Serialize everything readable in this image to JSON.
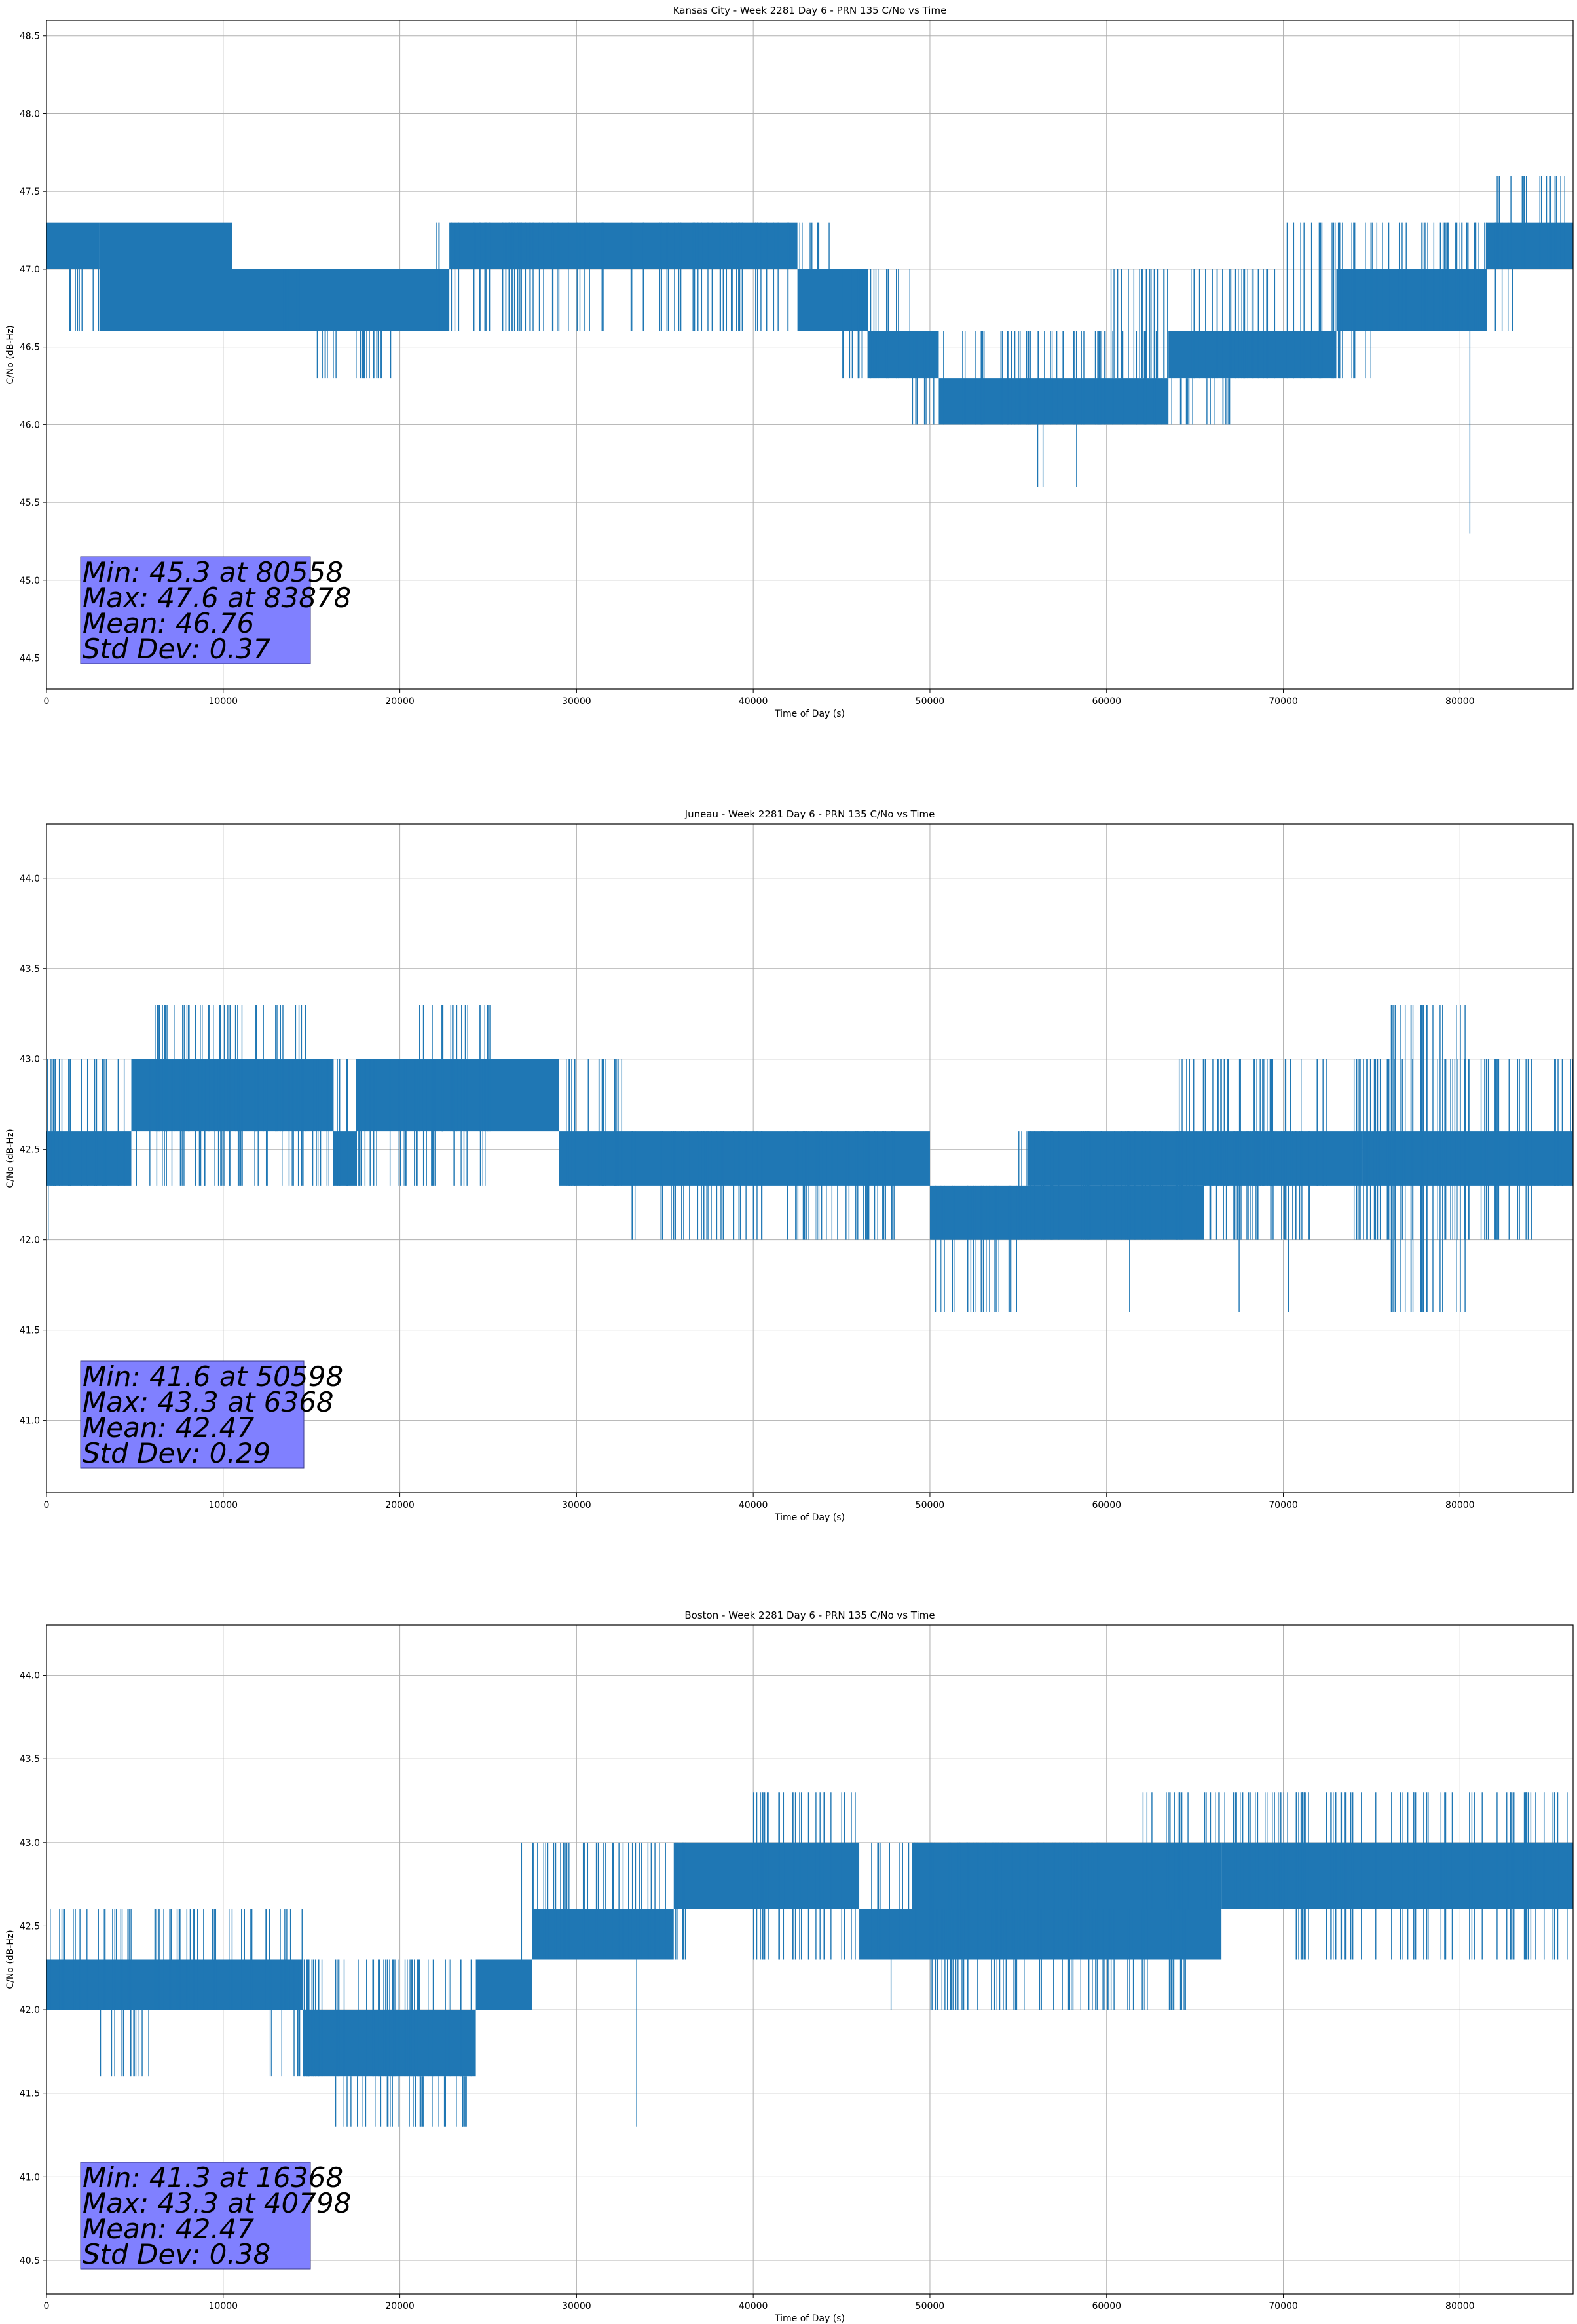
{
  "colors": {
    "line": "#1f77b4",
    "grid": "#b0b0b0",
    "stats_box_fill": "#8080ff",
    "stats_box_edge": "#3a3a8a"
  },
  "chart_data": [
    {
      "type": "line",
      "title": "Kansas City - Week 2281 Day 6 - PRN 135 C/No vs Time",
      "xlabel": "Time of Day (s)",
      "ylabel": "C/No (dB-Hz)",
      "xlim": [
        0,
        86400
      ],
      "ylim": [
        44.3,
        48.6
      ],
      "xticks": [
        0,
        10000,
        20000,
        30000,
        40000,
        50000,
        60000,
        70000,
        80000
      ],
      "yticks": [
        44.5,
        45.0,
        45.5,
        46.0,
        46.5,
        47.0,
        47.5,
        48.0,
        48.5
      ],
      "ytick_labels": [
        "44.5",
        "45.0",
        "45.5",
        "46.0",
        "46.5",
        "47.0",
        "47.5",
        "48.0",
        "48.5"
      ],
      "grid": true,
      "series": [
        {
          "bands": [
            {
              "x": [
                0,
                3000
              ],
              "y": [
                47.0,
                47.3
              ]
            },
            {
              "x": [
                3000,
                10500
              ],
              "y": [
                46.6,
                47.3
              ]
            },
            {
              "x": [
                10500,
                22800
              ],
              "y": [
                46.6,
                47.0
              ]
            },
            {
              "x": [
                22800,
                42500
              ],
              "y": [
                47.0,
                47.3
              ]
            },
            {
              "x": [
                42500,
                46500
              ],
              "y": [
                46.6,
                47.0
              ]
            },
            {
              "x": [
                46500,
                50500
              ],
              "y": [
                46.3,
                46.6
              ]
            },
            {
              "x": [
                50500,
                63500
              ],
              "y": [
                46.0,
                46.3
              ]
            },
            {
              "x": [
                63500,
                73000
              ],
              "y": [
                46.3,
                46.6
              ]
            },
            {
              "x": [
                73000,
                81500
              ],
              "y": [
                46.6,
                47.0
              ]
            },
            {
              "x": [
                81500,
                86400
              ],
              "y": [
                47.0,
                47.3
              ]
            }
          ],
          "spikes": [
            {
              "x": [
                14800,
                19500
              ],
              "y": [
                46.3,
                46.6
              ]
            },
            {
              "x": [
                13000,
                14500
              ],
              "y": [
                46.6,
                47.0
              ]
            },
            {
              "x": [
                1000,
                3000
              ],
              "y": [
                46.6,
                47.0
              ]
            },
            {
              "x": [
                22000,
                32000
              ],
              "y": [
                46.6,
                47.3
              ]
            },
            {
              "x": [
                33000,
                42000
              ],
              "y": [
                46.6,
                47.3
              ]
            },
            {
              "x": [
                42000,
                44500
              ],
              "y": [
                47.0,
                47.3
              ]
            },
            {
              "x": [
                44500,
                49000
              ],
              "y": [
                46.3,
                47.0
              ]
            },
            {
              "x": [
                49000,
                51000
              ],
              "y": [
                46.0,
                46.6
              ]
            },
            {
              "x": [
                51500,
                63000
              ],
              "y": [
                46.0,
                46.6
              ]
            },
            {
              "x": [
                63000,
                67000
              ],
              "y": [
                46.0,
                46.3
              ]
            },
            {
              "x": [
                60000,
                70000
              ],
              "y": [
                46.3,
                47.0
              ]
            },
            {
              "x": [
                70000,
                75000
              ],
              "y": [
                46.3,
                47.3
              ]
            },
            {
              "x": [
                75000,
                81000
              ],
              "y": [
                46.6,
                47.3
              ]
            },
            {
              "x": [
                80000,
                83000
              ],
              "y": [
                46.6,
                47.3
              ]
            },
            {
              "x": [
                82000,
                86000
              ],
              "y": [
                47.0,
                47.6
              ]
            }
          ],
          "extremes": [
            {
              "x": 56100,
              "y": [
                45.6,
                46.0
              ]
            },
            {
              "x": 56400,
              "y": [
                45.6,
                46.0
              ]
            },
            {
              "x": 58300,
              "y": [
                45.6,
                46.0
              ]
            },
            {
              "x": 80558,
              "y": [
                45.3,
                46.6
              ]
            },
            {
              "x": 38300,
              "y": [
                46.6,
                47.0
              ]
            }
          ]
        }
      ],
      "stats": {
        "min_line": "Min: 45.3 at 80558",
        "max_line": "Max: 47.6 at 83878",
        "mean_line": "Mean: 46.76",
        "std_line": "Std Dev: 0.37"
      }
    },
    {
      "type": "line",
      "title": "Juneau - Week 2281 Day 6 - PRN 135 C/No vs Time",
      "xlabel": "Time of Day (s)",
      "ylabel": "C/No (dB-Hz)",
      "xlim": [
        0,
        86400
      ],
      "ylim": [
        40.6,
        44.3
      ],
      "xticks": [
        0,
        10000,
        20000,
        30000,
        40000,
        50000,
        60000,
        70000,
        80000
      ],
      "yticks": [
        41.0,
        41.5,
        42.0,
        42.5,
        43.0,
        43.5,
        44.0
      ],
      "ytick_labels": [
        "41.0",
        "41.5",
        "42.0",
        "42.5",
        "43.0",
        "43.5",
        "44.0"
      ],
      "grid": true,
      "series": [
        {
          "bands": [
            {
              "x": [
                0,
                4800
              ],
              "y": [
                42.3,
                42.6
              ]
            },
            {
              "x": [
                4800,
                16200
              ],
              "y": [
                42.6,
                43.0
              ]
            },
            {
              "x": [
                16200,
                17500
              ],
              "y": [
                42.3,
                42.6
              ]
            },
            {
              "x": [
                17500,
                29000
              ],
              "y": [
                42.6,
                43.0
              ]
            },
            {
              "x": [
                29000,
                50000
              ],
              "y": [
                42.3,
                42.6
              ]
            },
            {
              "x": [
                50000,
                65500
              ],
              "y": [
                42.0,
                42.3
              ]
            },
            {
              "x": [
                55500,
                74500
              ],
              "y": [
                42.3,
                42.6
              ]
            },
            {
              "x": [
                74500,
                86400
              ],
              "y": [
                42.3,
                42.6
              ]
            }
          ],
          "spikes": [
            {
              "x": [
                0,
                4800
              ],
              "y": [
                42.3,
                43.0
              ]
            },
            {
              "x": [
                6000,
                15000
              ],
              "y": [
                42.6,
                43.3
              ]
            },
            {
              "x": [
                5000,
                17500
              ],
              "y": [
                42.3,
                43.0
              ]
            },
            {
              "x": [
                17500,
                25000
              ],
              "y": [
                42.3,
                43.0
              ]
            },
            {
              "x": [
                21000,
                25500
              ],
              "y": [
                42.6,
                43.3
              ]
            },
            {
              "x": [
                29000,
                33000
              ],
              "y": [
                42.3,
                43.0
              ]
            },
            {
              "x": [
                33000,
                48000
              ],
              "y": [
                42.0,
                42.6
              ]
            },
            {
              "x": [
                50000,
                55000
              ],
              "y": [
                41.6,
                42.3
              ]
            },
            {
              "x": [
                55000,
                72000
              ],
              "y": [
                42.0,
                42.6
              ]
            },
            {
              "x": [
                64000,
                73000
              ],
              "y": [
                42.3,
                43.0
              ]
            },
            {
              "x": [
                74000,
                85000
              ],
              "y": [
                42.0,
                43.0
              ]
            },
            {
              "x": [
                76000,
                80500
              ],
              "y": [
                41.6,
                43.3
              ]
            },
            {
              "x": [
                85000,
                86400
              ],
              "y": [
                42.3,
                43.0
              ]
            }
          ],
          "extremes": [
            {
              "x": 50598,
              "y": [
                41.6,
                42.3
              ]
            },
            {
              "x": 6368,
              "y": [
                42.6,
                43.3
              ]
            },
            {
              "x": 67500,
              "y": [
                41.6,
                42.3
              ]
            },
            {
              "x": 70300,
              "y": [
                41.6,
                42.3
              ]
            },
            {
              "x": 61300,
              "y": [
                41.6,
                42.3
              ]
            },
            {
              "x": 100,
              "y": [
                42.0,
                42.3
              ]
            }
          ]
        }
      ],
      "stats": {
        "min_line": "Min: 41.6 at 50598",
        "max_line": "Max: 43.3 at 6368",
        "mean_line": "Mean: 42.47",
        "std_line": "Std Dev: 0.29"
      }
    },
    {
      "type": "line",
      "title": "Boston - Week 2281 Day 6 - PRN 135 C/No vs Time",
      "xlabel": "Time of Day (s)",
      "ylabel": "C/No (dB-Hz)",
      "xlim": [
        0,
        86400
      ],
      "ylim": [
        40.3,
        44.3
      ],
      "xticks": [
        0,
        10000,
        20000,
        30000,
        40000,
        50000,
        60000,
        70000,
        80000
      ],
      "yticks": [
        40.5,
        41.0,
        41.5,
        42.0,
        42.5,
        43.0,
        43.5,
        44.0
      ],
      "ytick_labels": [
        "40.5",
        "41.0",
        "41.5",
        "42.0",
        "42.5",
        "43.0",
        "43.5",
        "44.0"
      ],
      "grid": true,
      "series": [
        {
          "bands": [
            {
              "x": [
                0,
                14500
              ],
              "y": [
                42.0,
                42.3
              ]
            },
            {
              "x": [
                14500,
                24300
              ],
              "y": [
                41.6,
                42.0
              ]
            },
            {
              "x": [
                24300,
                27500
              ],
              "y": [
                42.0,
                42.3
              ]
            },
            {
              "x": [
                27500,
                35500
              ],
              "y": [
                42.3,
                42.6
              ]
            },
            {
              "x": [
                35500,
                46000
              ],
              "y": [
                42.6,
                43.0
              ]
            },
            {
              "x": [
                46000,
                66500
              ],
              "y": [
                42.3,
                42.6
              ]
            },
            {
              "x": [
                49000,
                66500
              ],
              "y": [
                42.6,
                43.0
              ]
            },
            {
              "x": [
                66500,
                86400
              ],
              "y": [
                42.6,
                43.0
              ]
            }
          ],
          "spikes": [
            {
              "x": [
                0,
                5000
              ],
              "y": [
                42.0,
                42.6
              ]
            },
            {
              "x": [
                3000,
                6000
              ],
              "y": [
                41.6,
                42.0
              ]
            },
            {
              "x": [
                6000,
                14500
              ],
              "y": [
                42.0,
                42.6
              ]
            },
            {
              "x": [
                12500,
                15500
              ],
              "y": [
                41.6,
                42.3
              ]
            },
            {
              "x": [
                16500,
                24000
              ],
              "y": [
                41.3,
                41.6
              ]
            },
            {
              "x": [
                14500,
                24300
              ],
              "y": [
                41.6,
                42.3
              ]
            },
            {
              "x": [
                26500,
                31500
              ],
              "y": [
                42.3,
                43.0
              ]
            },
            {
              "x": [
                31500,
                36500
              ],
              "y": [
                42.3,
                43.0
              ]
            },
            {
              "x": [
                40000,
                46000
              ],
              "y": [
                42.3,
                43.3
              ]
            },
            {
              "x": [
                46000,
                60000
              ],
              "y": [
                42.3,
                43.0
              ]
            },
            {
              "x": [
                50000,
                65000
              ],
              "y": [
                42.0,
                42.6
              ]
            },
            {
              "x": [
                62000,
                70500
              ],
              "y": [
                42.6,
                43.3
              ]
            },
            {
              "x": [
                70500,
                86400
              ],
              "y": [
                42.3,
                43.3
              ]
            }
          ],
          "extremes": [
            {
              "x": 16368,
              "y": [
                41.3,
                41.6
              ]
            },
            {
              "x": 33400,
              "y": [
                41.3,
                42.3
              ]
            },
            {
              "x": 40798,
              "y": [
                42.6,
                43.3
              ]
            },
            {
              "x": 47800,
              "y": [
                42.0,
                42.3
              ]
            },
            {
              "x": 59900,
              "y": [
                42.0,
                42.3
              ]
            }
          ]
        }
      ],
      "stats": {
        "min_line": "Min: 41.3 at 16368",
        "max_line": "Max: 43.3 at 40798",
        "mean_line": "Mean: 42.47",
        "std_line": "Std Dev: 0.38"
      }
    }
  ]
}
